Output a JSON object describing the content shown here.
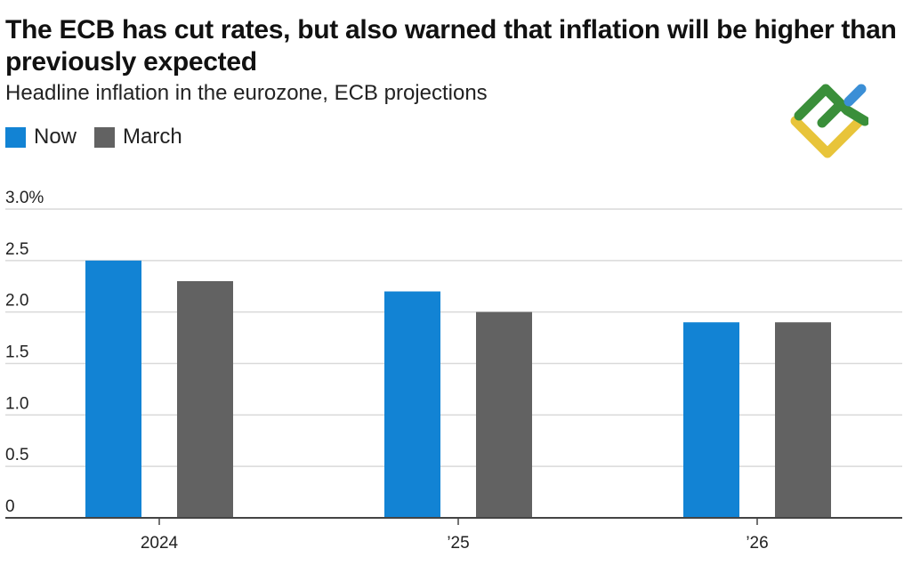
{
  "header": {
    "title": "The ECB has cut rates, but also warned that inflation will be higher than previously expected",
    "subtitle": "Headline inflation in the eurozone, ECB projections"
  },
  "legend": {
    "placement": "top-left",
    "items": [
      {
        "label": "Now",
        "color": "#1283d4"
      },
      {
        "label": "March",
        "color": "#626262"
      }
    ]
  },
  "logo": {
    "icon": "brand-logo-icon",
    "colors": [
      "#3a8f3a",
      "#3b8fd6",
      "#e8c43a"
    ]
  },
  "chart_data": {
    "type": "bar",
    "categories": [
      "2024",
      "’25",
      "’26"
    ],
    "series": [
      {
        "name": "Now",
        "color": "#1283d4",
        "values": [
          2.5,
          2.2,
          1.9
        ]
      },
      {
        "name": "March",
        "color": "#626262",
        "values": [
          2.3,
          2.0,
          1.9
        ]
      }
    ],
    "ylim": [
      0,
      3.0
    ],
    "yticks": [
      {
        "value": 3.0,
        "label": "3.0%"
      },
      {
        "value": 2.5,
        "label": "2.5"
      },
      {
        "value": 2.0,
        "label": "2.0"
      },
      {
        "value": 1.5,
        "label": "1.5"
      },
      {
        "value": 1.0,
        "label": "1.0"
      },
      {
        "value": 0.5,
        "label": "0.5"
      },
      {
        "value": 0,
        "label": "0"
      }
    ],
    "grid": true,
    "title": "The ECB has cut rates, but also warned that inflation will be higher than previously expected",
    "subtitle": "Headline inflation in the eurozone, ECB projections",
    "xlabel": "",
    "ylabel": ""
  }
}
